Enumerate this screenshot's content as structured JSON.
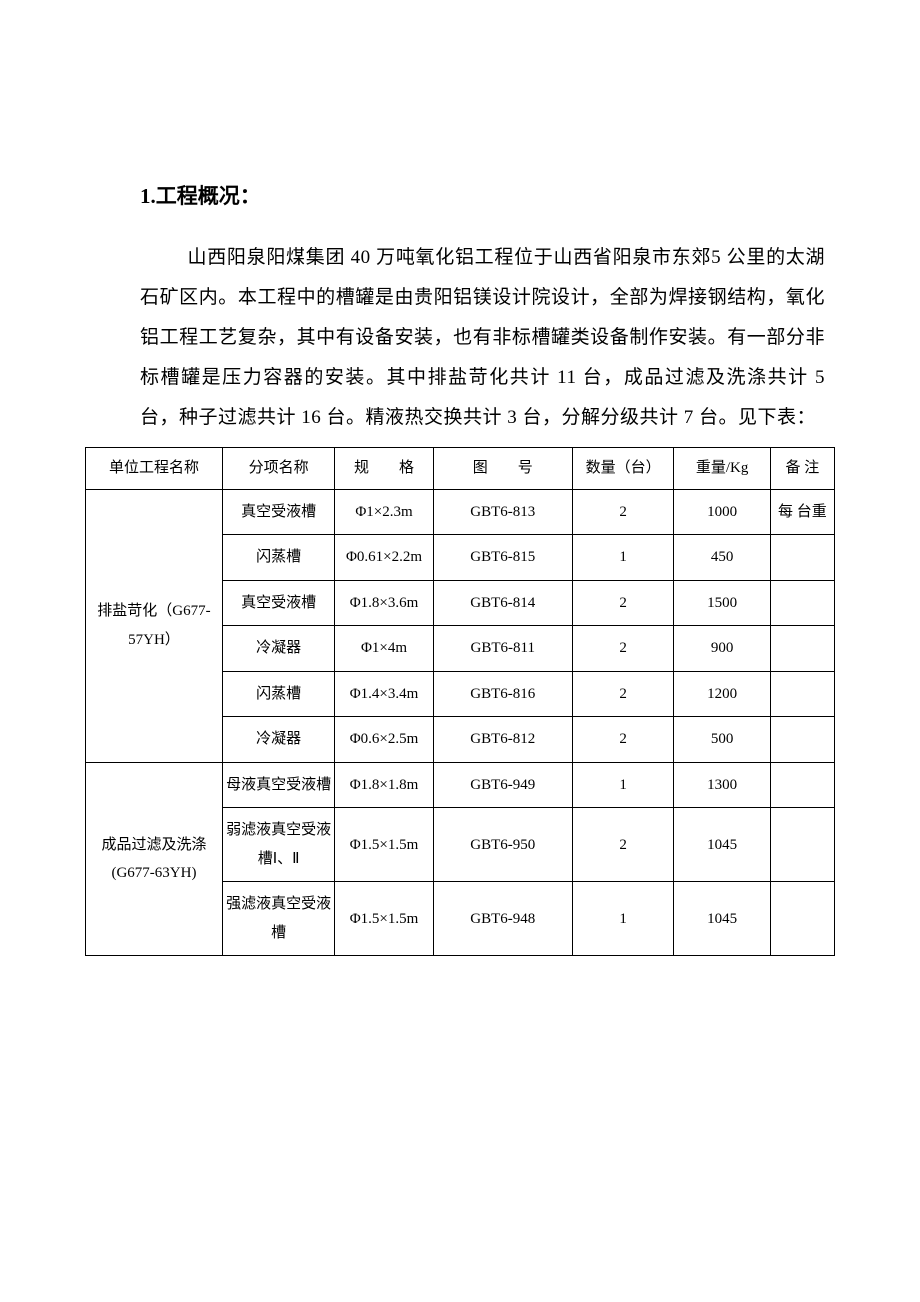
{
  "heading": "1.工程概况：",
  "paragraph": "山西阳泉阳煤集团 40 万吨氧化铝工程位于山西省阳泉市东郊5 公里的太湖石矿区内。本工程中的槽罐是由贵阳铝镁设计院设计，全部为焊接钢结构，氧化铝工程工艺复杂，其中有设备安装，也有非标槽罐类设备制作安装。有一部分非标槽罐是压力容器的安装。其中排盐苛化共计 11 台，成品过滤及洗涤共计 5 台，种子过滤共计 16 台。精液热交换共计 3 台，分解分级共计 7 台。见下表：",
  "table": {
    "headers": {
      "unit": "单位工程名称",
      "item": "分项名称",
      "spec": "规　　格",
      "draw": "图　　号",
      "qty": "数量（台）",
      "weight": "重量/Kg",
      "note": "备 注"
    },
    "groups": [
      {
        "unit": "排盐苛化（G677-57YH）",
        "rows": [
          {
            "item": "真空受液槽",
            "spec": "Φ1×2.3m",
            "draw": "GBT6-813",
            "qty": "2",
            "weight": "1000",
            "note": "每 台重"
          },
          {
            "item": "闪蒸槽",
            "spec": "Φ0.61×2.2m",
            "draw": "GBT6-815",
            "qty": "1",
            "weight": "450",
            "note": ""
          },
          {
            "item": "真空受液槽",
            "spec": "Φ1.8×3.6m",
            "draw": "GBT6-814",
            "qty": "2",
            "weight": "1500",
            "note": ""
          },
          {
            "item": "冷凝器",
            "spec": "Φ1×4m",
            "draw": "GBT6-811",
            "qty": "2",
            "weight": "900",
            "note": ""
          },
          {
            "item": "闪蒸槽",
            "spec": "Φ1.4×3.4m",
            "draw": "GBT6-816",
            "qty": "2",
            "weight": "1200",
            "note": ""
          },
          {
            "item": "冷凝器",
            "spec": "Φ0.6×2.5m",
            "draw": "GBT6-812",
            "qty": "2",
            "weight": "500",
            "note": ""
          }
        ]
      },
      {
        "unit": "成品过滤及洗涤(G677-63YH)",
        "rows": [
          {
            "item": "母液真空受液槽",
            "spec": "Φ1.8×1.8m",
            "draw": "GBT6-949",
            "qty": "1",
            "weight": "1300",
            "note": ""
          },
          {
            "item": "弱滤液真空受液槽Ⅰ、Ⅱ",
            "spec": "Φ1.5×1.5m",
            "draw": "GBT6-950",
            "qty": "2",
            "weight": "1045",
            "note": ""
          },
          {
            "item": "强滤液真空受液槽",
            "spec": "Φ1.5×1.5m",
            "draw": "GBT6-948",
            "qty": "1",
            "weight": "1045",
            "note": ""
          }
        ]
      }
    ]
  },
  "colors": {
    "background": "#ffffff",
    "text": "#000000",
    "border": "#000000"
  }
}
